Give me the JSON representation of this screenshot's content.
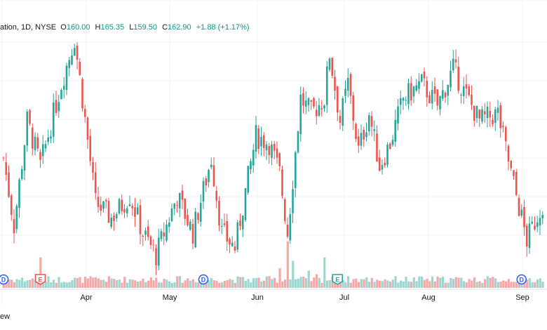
{
  "header": {
    "symbol_tail": "ation",
    "interval": "1D",
    "exchange": "NYSE",
    "o_label": "O",
    "o_value": "160.00",
    "h_label": "H",
    "h_value": "165.35",
    "l_label": "L",
    "l_value": "159.50",
    "c_label": "C",
    "c_value": "162.90",
    "change": "+1.88 (+1.17%)"
  },
  "footer_text": "ew",
  "colors": {
    "up": "#26a69a",
    "down": "#ef5350",
    "vol_up": "#9ed6cf",
    "vol_down": "#f4a9a7",
    "grid": "#f0f3fa",
    "marker": "#2962ff"
  },
  "chart_data": {
    "type": "candlestick",
    "price_range": [
      137,
      168
    ],
    "months": [
      "Apr",
      "May",
      "Jun",
      "Jul",
      "Aug",
      "Sep"
    ],
    "markers": [
      {
        "label": "D",
        "bar": 0,
        "kind": "dividend"
      },
      {
        "label": "E",
        "bar": 14,
        "kind": "earnings"
      },
      {
        "label": "D",
        "bar": 76,
        "kind": "dividend"
      },
      {
        "label": "E",
        "bar": 127,
        "kind": "earnings"
      },
      {
        "label": "D",
        "bar": 197,
        "kind": "dividend"
      }
    ],
    "ohlc": []
  }
}
